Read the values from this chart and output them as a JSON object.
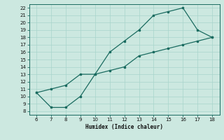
{
  "xlabel": "Humidex (Indice chaleur)",
  "ylabel": "",
  "bg_color": "#cce8e0",
  "grid_color": "#a8d5cb",
  "line_color": "#1a6b60",
  "line1_x": [
    6,
    7,
    8,
    9,
    10,
    11,
    12,
    13,
    14,
    15,
    16,
    17,
    18
  ],
  "line1_y": [
    10.5,
    8.5,
    8.5,
    10.0,
    13.0,
    16.0,
    17.5,
    19.0,
    21.0,
    21.5,
    22.0,
    19.0,
    18.0
  ],
  "line2_x": [
    6,
    7,
    8,
    9,
    10,
    11,
    12,
    13,
    14,
    15,
    16,
    17,
    18
  ],
  "line2_y": [
    10.5,
    11.0,
    11.5,
    13.0,
    13.0,
    13.5,
    14.0,
    15.5,
    16.0,
    16.5,
    17.0,
    17.5,
    18.0
  ],
  "xlim": [
    5.5,
    18.5
  ],
  "ylim": [
    7.5,
    22.5
  ],
  "xticks": [
    6,
    7,
    8,
    9,
    10,
    11,
    12,
    13,
    14,
    15,
    16,
    17,
    18
  ],
  "yticks": [
    8,
    9,
    10,
    11,
    12,
    13,
    14,
    15,
    16,
    17,
    18,
    19,
    20,
    21,
    22
  ]
}
